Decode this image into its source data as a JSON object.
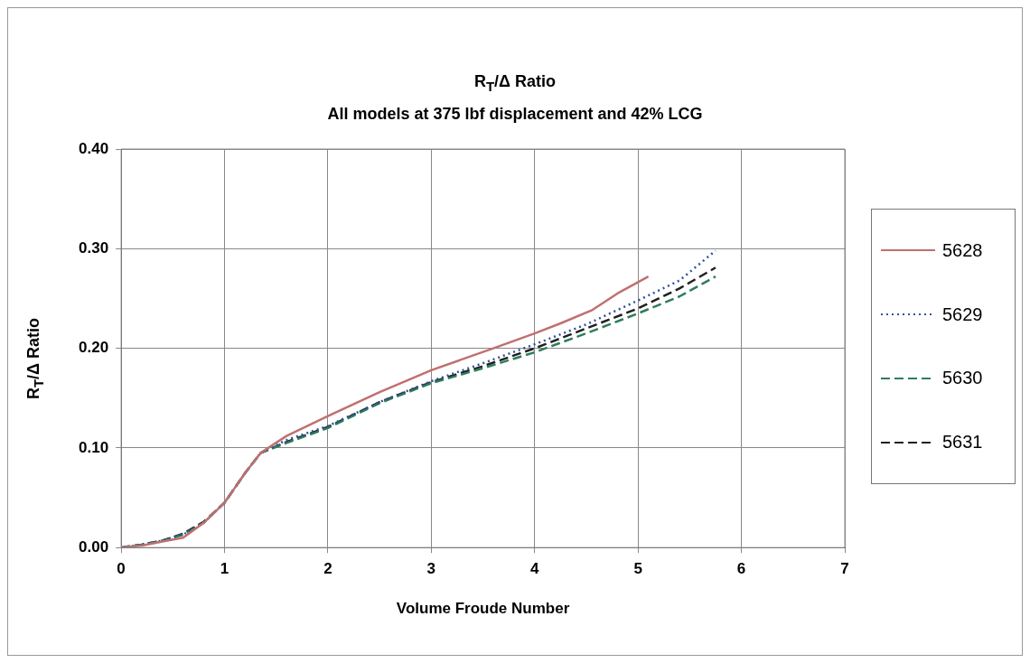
{
  "chart_data": {
    "type": "line",
    "title": "R$_{T}$/Δ Ratio",
    "subtitle": "All models at 375 lbf displacement and 42% LCG",
    "xlabel": "Volume Froude Number",
    "ylabel": "R$_{T}$/Δ Ratio",
    "xlim": [
      0,
      7
    ],
    "xticks": [
      0,
      1,
      2,
      3,
      4,
      5,
      6,
      7
    ],
    "ylim": [
      0,
      0.4
    ],
    "yticks": [
      {
        "value": 0,
        "label": "0.00"
      },
      {
        "value": 0.1,
        "label": "0.10"
      },
      {
        "value": 0.2,
        "label": "0.20"
      },
      {
        "value": 0.3,
        "label": "0.30"
      },
      {
        "value": 0.4,
        "label": "0.40"
      }
    ],
    "grid": true,
    "legend": "right",
    "marker": "none",
    "series": [
      {
        "name": "5628",
        "color": "#c07070",
        "line_style": "solid",
        "x": [
          0,
          0.2,
          0.4,
          0.6,
          0.8,
          1.0,
          1.2,
          1.35,
          1.6,
          2,
          2.5,
          3,
          3.6,
          4,
          4.25,
          4.55,
          4.8,
          5.1
        ],
        "values": [
          0,
          0.002,
          0.006,
          0.01,
          0.025,
          0.045,
          0.075,
          0.095,
          0.112,
          0.132,
          0.156,
          0.178,
          0.2,
          0.215,
          0.225,
          0.238,
          0.255,
          0.272
        ]
      },
      {
        "name": "5629",
        "color": "#3050a0",
        "line_style": "dotted",
        "x": [
          0,
          0.2,
          0.4,
          0.6,
          0.8,
          1.0,
          1.2,
          1.35,
          1.6,
          2,
          2.5,
          3,
          3.5,
          4,
          4.5,
          5,
          5.4,
          5.75
        ],
        "values": [
          0,
          0.003,
          0.007,
          0.013,
          0.025,
          0.045,
          0.075,
          0.095,
          0.108,
          0.122,
          0.146,
          0.167,
          0.185,
          0.204,
          0.224,
          0.248,
          0.268,
          0.298
        ]
      },
      {
        "name": "5630",
        "color": "#2e7d5a",
        "line_style": "dashed",
        "x": [
          0,
          0.2,
          0.4,
          0.6,
          0.8,
          1.0,
          1.2,
          1.35,
          1.6,
          2,
          2.5,
          3,
          3.5,
          4,
          4.5,
          5,
          5.4,
          5.75
        ],
        "values": [
          0,
          0.003,
          0.007,
          0.013,
          0.025,
          0.045,
          0.075,
          0.095,
          0.105,
          0.12,
          0.145,
          0.165,
          0.18,
          0.196,
          0.215,
          0.235,
          0.252,
          0.272
        ]
      },
      {
        "name": "5631",
        "color": "#202020",
        "line_style": "dashed",
        "x": [
          0,
          0.2,
          0.4,
          0.6,
          0.8,
          1.0,
          1.2,
          1.35,
          1.6,
          2,
          2.5,
          3,
          3.5,
          4,
          4.5,
          5,
          5.4,
          5.75
        ],
        "values": [
          0,
          0.003,
          0.007,
          0.014,
          0.026,
          0.045,
          0.075,
          0.095,
          0.106,
          0.121,
          0.146,
          0.166,
          0.182,
          0.2,
          0.22,
          0.24,
          0.26,
          0.281
        ]
      }
    ]
  }
}
